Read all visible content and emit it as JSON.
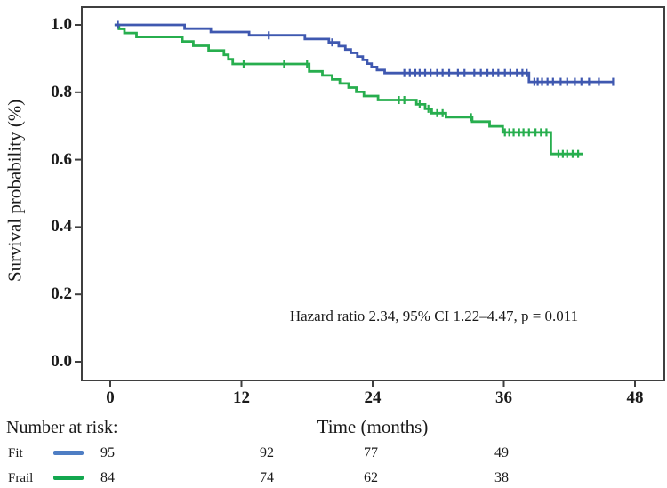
{
  "figure": {
    "background": "#ffffff",
    "axis_color": "#3f3f3f",
    "text_color": "#1a1a1a"
  },
  "chart_data": {
    "type": "line",
    "subtype": "kaplan-meier-step",
    "title": "",
    "xlabel": "Time (months)",
    "ylabel": "Survival probability (%)",
    "xlim": [
      0,
      48
    ],
    "ylim": [
      0.0,
      1.0
    ],
    "x_ticks": [
      "0",
      "12",
      "24",
      "36",
      "48"
    ],
    "x_tick_values": [
      0,
      12,
      24,
      36,
      48
    ],
    "y_ticks": [
      "1.0",
      "0.8",
      "0.6",
      "0.4",
      "0.2",
      "0.0"
    ],
    "y_tick_values": [
      1.0,
      0.8,
      0.6,
      0.4,
      0.2,
      0.0
    ],
    "grid": false,
    "legend_position": "none",
    "annotation": "Hazard ratio 2.34, 95% CI 1.22–4.47, p = 0.011",
    "series": [
      {
        "name": "Frail",
        "color": "#27ae4e",
        "steps": [
          [
            0.4,
            1.0
          ],
          [
            0.8,
            0.988
          ],
          [
            1.3,
            0.976
          ],
          [
            2.4,
            0.964
          ],
          [
            6.6,
            0.951
          ],
          [
            7.6,
            0.938
          ],
          [
            9.0,
            0.924
          ],
          [
            10.4,
            0.911
          ],
          [
            10.8,
            0.898
          ],
          [
            11.2,
            0.884
          ],
          [
            18.2,
            0.862
          ],
          [
            19.4,
            0.85
          ],
          [
            20.3,
            0.838
          ],
          [
            21.0,
            0.826
          ],
          [
            21.8,
            0.814
          ],
          [
            22.5,
            0.801
          ],
          [
            23.2,
            0.789
          ],
          [
            24.5,
            0.777
          ],
          [
            28.0,
            0.764
          ],
          [
            28.8,
            0.751
          ],
          [
            29.4,
            0.738
          ],
          [
            30.7,
            0.726
          ],
          [
            33.1,
            0.713
          ],
          [
            34.7,
            0.699
          ],
          [
            35.9,
            0.681
          ],
          [
            40.3,
            0.617
          ],
          [
            43.2,
            0.617
          ]
        ],
        "censor_times": [
          12.2,
          15.9,
          18.0,
          26.4,
          26.9,
          28.3,
          29.1,
          29.9,
          30.4,
          33.0,
          36.1,
          36.5,
          36.9,
          37.4,
          37.8,
          38.3,
          38.9,
          39.4,
          39.9,
          41.0,
          41.4,
          41.8,
          42.3,
          42.8
        ]
      },
      {
        "name": "Fit",
        "color": "#3f58b0",
        "steps": [
          [
            0.4,
            1.0
          ],
          [
            6.8,
            0.989
          ],
          [
            9.2,
            0.979
          ],
          [
            12.7,
            0.969
          ],
          [
            17.8,
            0.958
          ],
          [
            20.0,
            0.948
          ],
          [
            20.9,
            0.937
          ],
          [
            21.5,
            0.927
          ],
          [
            22.0,
            0.917
          ],
          [
            22.6,
            0.906
          ],
          [
            23.1,
            0.896
          ],
          [
            23.5,
            0.885
          ],
          [
            23.9,
            0.875
          ],
          [
            24.4,
            0.866
          ],
          [
            25.1,
            0.857
          ],
          [
            38.3,
            0.831
          ],
          [
            46.0,
            0.831
          ]
        ],
        "censor_times": [
          0.7,
          14.5,
          20.3,
          26.9,
          27.4,
          27.9,
          28.3,
          28.8,
          29.3,
          29.9,
          30.4,
          31.0,
          31.8,
          32.4,
          33.3,
          33.9,
          34.5,
          35.0,
          35.5,
          36.1,
          36.6,
          37.2,
          37.7,
          38.1,
          38.8,
          39.1,
          39.5,
          40.0,
          40.5,
          41.2,
          41.8,
          42.5,
          43.1,
          43.8,
          44.7,
          46.0
        ]
      }
    ]
  },
  "risk_table": {
    "header": "Number at risk:",
    "time_points": [
      0,
      12,
      24,
      36
    ],
    "rows": [
      {
        "label": "Fit",
        "swatch_color": "#4e7ec4",
        "counts": [
          "95",
          "92",
          "77",
          "49"
        ]
      },
      {
        "label": "Frail",
        "swatch_color": "#12a74e",
        "counts": [
          "84",
          "74",
          "62",
          "38"
        ]
      }
    ]
  }
}
